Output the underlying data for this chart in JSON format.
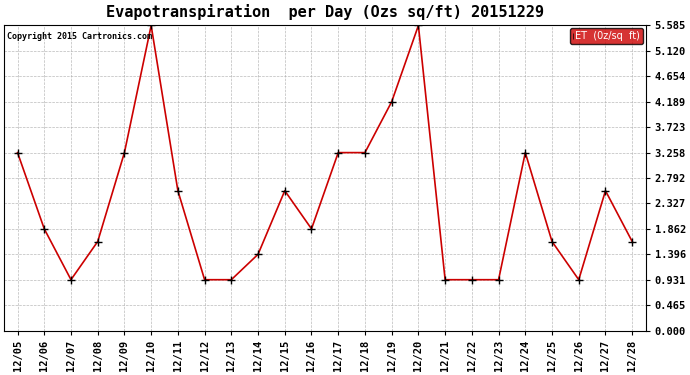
{
  "title": "Evapotranspiration  per Day (Ozs sq/ft) 20151229",
  "copyright": "Copyright 2015 Cartronics.com",
  "legend_label": "ET  (0z/sq  ft)",
  "dates": [
    "12/05",
    "12/06",
    "12/07",
    "12/08",
    "12/09",
    "12/10",
    "12/11",
    "12/12",
    "12/13",
    "12/14",
    "12/15",
    "12/16",
    "12/17",
    "12/18",
    "12/19",
    "12/20",
    "12/21",
    "12/22",
    "12/23",
    "12/24",
    "12/25",
    "12/26",
    "12/27",
    "12/28"
  ],
  "values": [
    3.258,
    1.862,
    0.931,
    1.63,
    3.258,
    5.585,
    2.56,
    0.931,
    0.931,
    1.396,
    2.56,
    1.862,
    3.258,
    3.258,
    4.189,
    5.585,
    0.931,
    0.931,
    0.931,
    3.258,
    1.63,
    0.931,
    2.56,
    1.63
  ],
  "line_color": "#cc0000",
  "marker": "+",
  "marker_color": "black",
  "marker_size": 6,
  "background_color": "#ffffff",
  "grid_color": "#aaaaaa",
  "ylim_min": 0.0,
  "ylim_max": 5.585,
  "yticks": [
    0.0,
    0.465,
    0.931,
    1.396,
    1.862,
    2.327,
    2.792,
    3.258,
    3.723,
    4.189,
    4.654,
    5.12,
    5.585
  ],
  "title_fontsize": 11,
  "tick_fontsize": 7.5,
  "legend_bg": "#cc0000",
  "legend_text_color": "#ffffff",
  "fig_width": 6.9,
  "fig_height": 3.75,
  "dpi": 100
}
